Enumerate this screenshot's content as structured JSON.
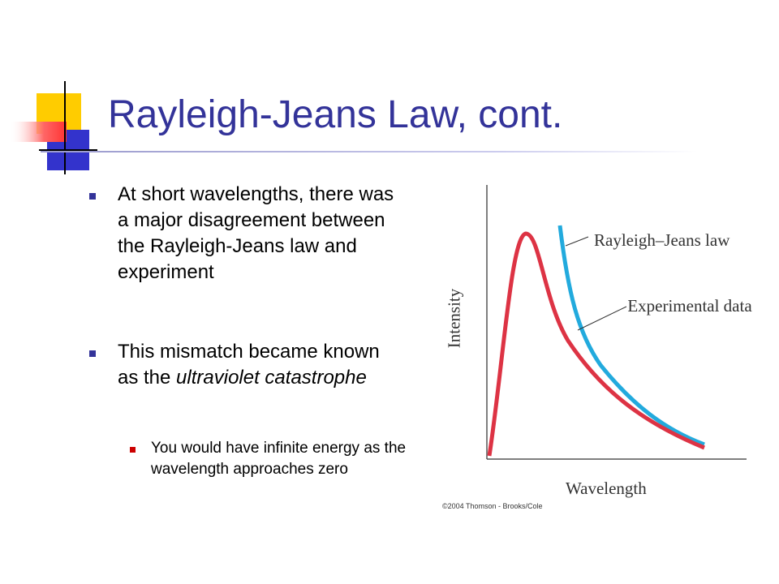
{
  "title": "Rayleigh-Jeans Law, cont.",
  "bullets": [
    "At short wavelengths, there was a major disagreement between the Rayleigh-Jeans law and experiment",
    [
      "This mismatch became known as the ",
      "ultraviolet catastrophe"
    ]
  ],
  "sub_bullets": [
    "You would have infinite energy as the wavelength approaches zero"
  ],
  "figure": {
    "curve_labels": [
      "Rayleigh–Jeans law",
      "Experimental data"
    ],
    "y_axis_label": "Intensity",
    "x_axis_label": "Wavelength",
    "credit": "©2004 Thomson - Brooks/Cole"
  }
}
